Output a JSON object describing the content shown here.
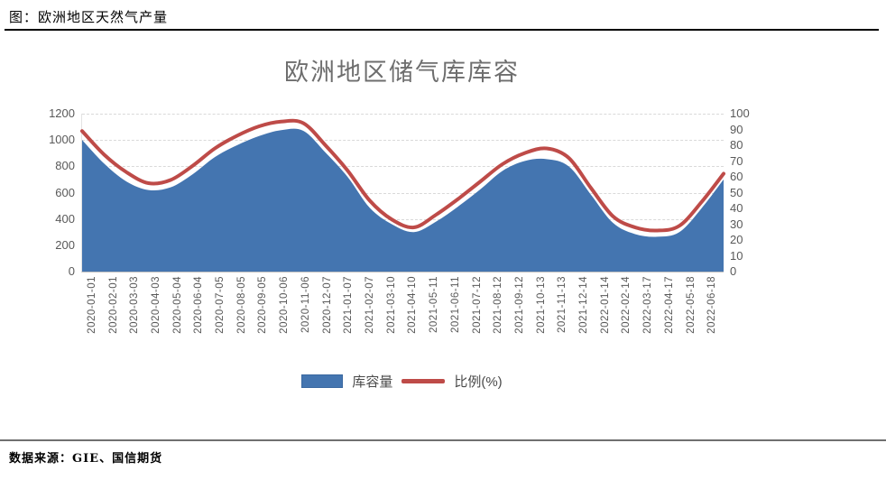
{
  "page": {
    "heading": "图：欧洲地区天然气产量",
    "source": "数据来源：GIE、国信期货"
  },
  "chart_data": {
    "type": "area",
    "title": "欧洲地区储气库库容",
    "categories": [
      "2020-01-01",
      "2020-02-01",
      "2020-03-03",
      "2020-04-03",
      "2020-05-04",
      "2020-06-04",
      "2020-07-05",
      "2020-08-05",
      "2020-09-05",
      "2020-10-06",
      "2020-11-06",
      "2020-12-07",
      "2021-01-07",
      "2021-02-07",
      "2021-03-10",
      "2021-04-10",
      "2021-05-11",
      "2021-06-11",
      "2021-07-12",
      "2021-08-12",
      "2021-09-12",
      "2021-10-13",
      "2021-11-13",
      "2021-12-14",
      "2022-01-14",
      "2022-02-14",
      "2022-03-17",
      "2022-04-17",
      "2022-05-18",
      "2022-06-18"
    ],
    "series": [
      {
        "name": "库容量",
        "type": "area",
        "axis": "left",
        "color": "#4475b0",
        "values": [
          1000,
          820,
          685,
          620,
          640,
          740,
          870,
          960,
          1030,
          1075,
          1070,
          905,
          720,
          485,
          360,
          300,
          380,
          495,
          625,
          765,
          840,
          855,
          800,
          585,
          370,
          285,
          265,
          300,
          480,
          700
        ]
      },
      {
        "name": "比例(%)",
        "type": "line",
        "axis": "right",
        "color": "#be4b48",
        "values": [
          89,
          74,
          63,
          56,
          58,
          67,
          78,
          86,
          92,
          95,
          94,
          80,
          64,
          45,
          33,
          28,
          36,
          46,
          57,
          68,
          75,
          78,
          72,
          53,
          35,
          28,
          26,
          29,
          44,
          62
        ]
      }
    ],
    "left_axis": {
      "min": 0,
      "max": 1200,
      "ticks": [
        0,
        200,
        400,
        600,
        800,
        1000,
        1200
      ]
    },
    "right_axis": {
      "min": 0,
      "max": 100,
      "ticks": [
        0,
        10,
        20,
        30,
        40,
        50,
        60,
        70,
        80,
        90,
        100
      ]
    },
    "grid": "horizontal-dashed",
    "legend_position": "bottom"
  }
}
